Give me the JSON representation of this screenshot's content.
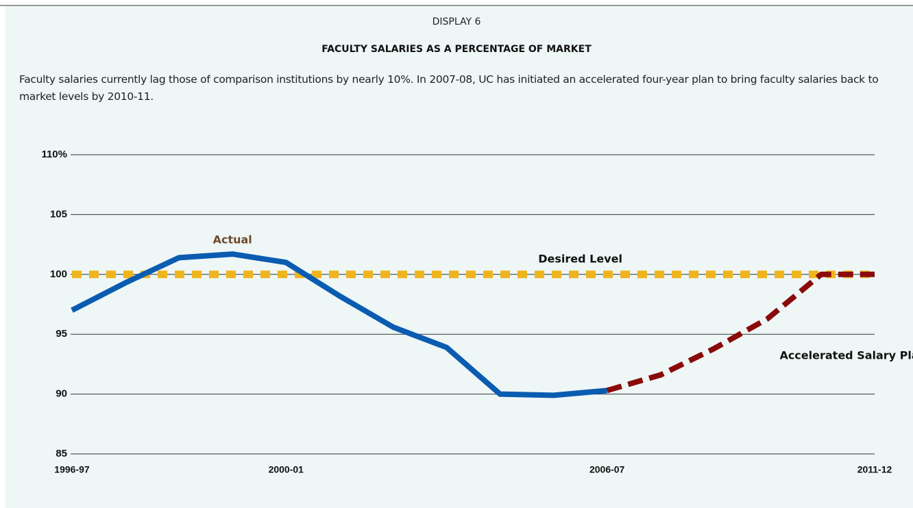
{
  "chart_data": {
    "type": "line",
    "kicker": "DISPLAY 6",
    "title": "FACULTY SALARIES AS A PERCENTAGE OF MARKET",
    "description": "Faculty salaries currently lag those of  comparison institutions by nearly 10%. In 2007-08, UC has initiated an accelerated four-year plan to bring faculty salaries back to market levels by 2010-11.",
    "categories": [
      "1996-97",
      null,
      null,
      null,
      "2000-01",
      null,
      null,
      null,
      null,
      null,
      "2006-07",
      null,
      null,
      null,
      null,
      "2011-12"
    ],
    "series": [
      {
        "name": "Desired Level",
        "color": "#f0b41c",
        "style": "dotted",
        "values": [
          100,
          100,
          100,
          100,
          100,
          100,
          100,
          100,
          100,
          100,
          100,
          100,
          100,
          100,
          100,
          100
        ]
      },
      {
        "name": "Actual",
        "color": "#0a5cb0",
        "style": "solid",
        "values": [
          97.0,
          99.3,
          101.4,
          101.7,
          101.0,
          98.2,
          95.6,
          93.9,
          90.0,
          89.9,
          90.3,
          null,
          null,
          null,
          null,
          null
        ]
      },
      {
        "name": "Accelerated Salary Plan",
        "color": "#8b0a0a",
        "style": "dashed",
        "values": [
          null,
          null,
          null,
          null,
          null,
          null,
          null,
          null,
          null,
          null,
          90.3,
          91.6,
          93.8,
          96.3,
          100,
          100
        ]
      }
    ],
    "ylim": [
      85,
      110
    ],
    "yticks": [
      85,
      90,
      95,
      100,
      105,
      {
        "value": 110,
        "label": "110%"
      }
    ],
    "grid": true
  }
}
